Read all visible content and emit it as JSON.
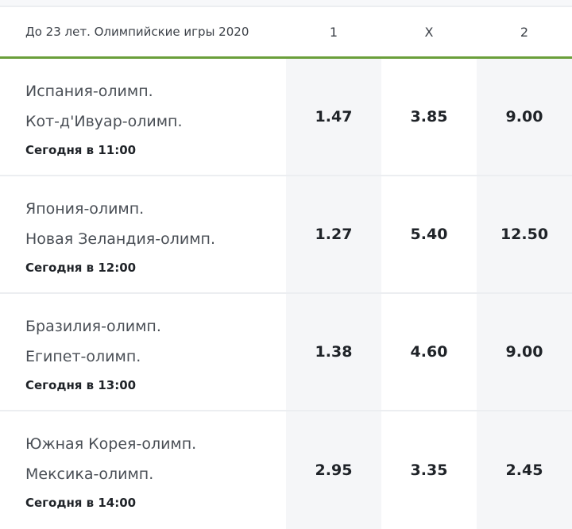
{
  "header": {
    "title": "До 23 лет. Олимпийские игры 2020",
    "col1": "1",
    "colX": "X",
    "col2": "2"
  },
  "accent_color": "#6a9f3a",
  "matches": [
    {
      "team1": "Испания-олимп.",
      "team2": "Кот-д'Ивуар-олимп.",
      "time": "Сегодня в 11:00",
      "odds": [
        "1.47",
        "3.85",
        "9.00"
      ]
    },
    {
      "team1": "Япония-олимп.",
      "team2": "Новая Зеландия-олимп.",
      "time": "Сегодня в 12:00",
      "odds": [
        "1.27",
        "5.40",
        "12.50"
      ]
    },
    {
      "team1": "Бразилия-олимп.",
      "team2": "Египет-олимп.",
      "time": "Сегодня в 13:00",
      "odds": [
        "1.38",
        "4.60",
        "9.00"
      ]
    },
    {
      "team1": "Южная Корея-олимп.",
      "team2": "Мексика-олимп.",
      "time": "Сегодня в 14:00",
      "odds": [
        "2.95",
        "3.35",
        "2.45"
      ]
    }
  ]
}
